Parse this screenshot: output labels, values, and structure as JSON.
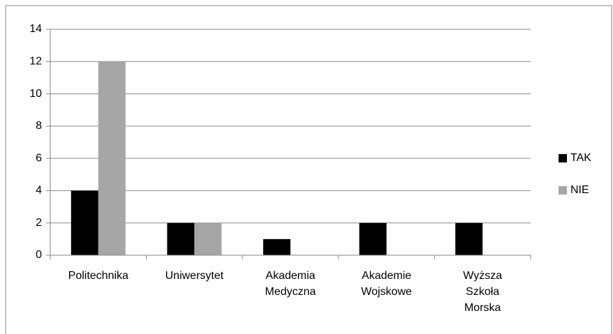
{
  "chart_data": {
    "type": "bar",
    "categories": [
      "Politechnika",
      "Uniwersytet",
      "Akademia Medyczna",
      "Akademie Wojskowe",
      "Wyższa Szkoła Morska"
    ],
    "series": [
      {
        "name": "TAK",
        "color": "#000000",
        "values": [
          4,
          2,
          1,
          2,
          2
        ]
      },
      {
        "name": "NIE",
        "color": "#a6a6a6",
        "values": [
          12,
          2,
          0,
          0,
          0
        ]
      }
    ],
    "ylim": [
      0,
      14
    ],
    "yticks": [
      0,
      2,
      4,
      6,
      8,
      10,
      12,
      14
    ],
    "grid": true,
    "legend": "right"
  }
}
